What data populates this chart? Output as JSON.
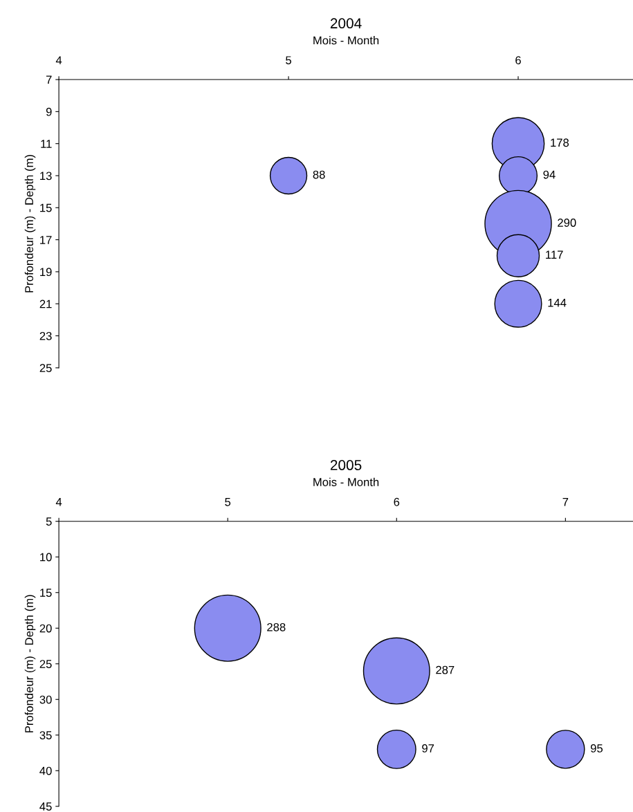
{
  "chart_data": [
    {
      "type": "bubble",
      "title": "2004",
      "xlabel": "Mois - Month",
      "ylabel": "Profondeur (m) - Depth (m)",
      "xlim": [
        4,
        6.5
      ],
      "xticks": [
        4,
        5,
        6
      ],
      "ylim": [
        25,
        7
      ],
      "yticks": [
        7,
        9,
        11,
        13,
        15,
        17,
        19,
        21,
        23,
        25
      ],
      "grid": false,
      "legend": false,
      "series": [
        {
          "color": "#8a8cf0",
          "x": [
            5,
            6,
            6,
            6,
            6,
            6
          ],
          "values": [
            13,
            11,
            13,
            16,
            18,
            21
          ],
          "sizes": [
            88,
            178,
            94,
            290,
            117,
            144
          ],
          "value_labels": [
            "88",
            "178",
            "94",
            "290",
            "117",
            "144"
          ]
        }
      ]
    },
    {
      "type": "bubble",
      "title": "2005",
      "xlabel": "Mois - Month",
      "ylabel": "Profondeur (m) - Depth (m)",
      "xlim": [
        4,
        7.4
      ],
      "xticks": [
        4,
        5,
        6,
        7
      ],
      "ylim": [
        45,
        5
      ],
      "yticks": [
        5,
        10,
        15,
        20,
        25,
        30,
        35,
        40,
        45
      ],
      "grid": false,
      "legend": false,
      "series": [
        {
          "color": "#8a8cf0",
          "x": [
            5,
            6,
            6,
            7
          ],
          "values": [
            20,
            26,
            37,
            37
          ],
          "sizes": [
            288,
            287,
            97,
            95
          ],
          "value_labels": [
            "288",
            "287",
            "97",
            "95"
          ]
        }
      ]
    }
  ]
}
